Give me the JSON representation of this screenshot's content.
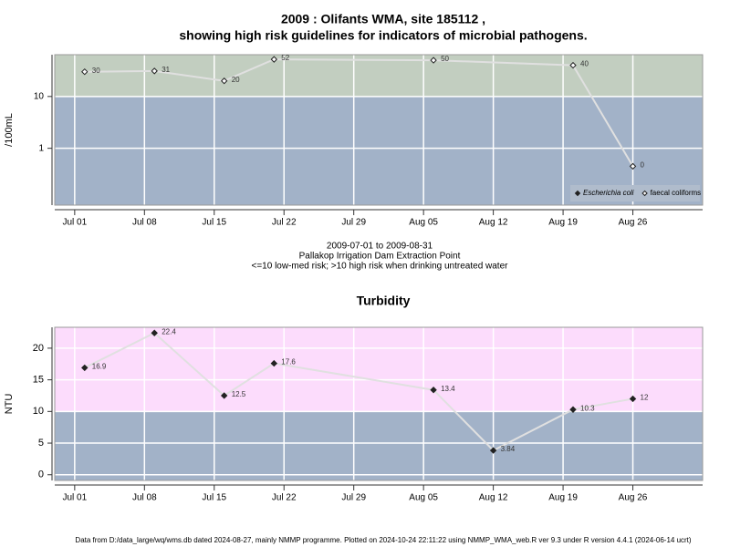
{
  "chart_data": [
    {
      "type": "line",
      "title": [
        "2009 : Olifants WMA, site 185112 ,",
        "showing high risk guidelines for indicators of microbial pathogens."
      ],
      "ylabel": "/100mL",
      "log_y": true,
      "threshold": 10,
      "colors": {
        "above": "#c2cec0",
        "below": "#a2b2c8",
        "line": "#e0e0e0"
      },
      "caption": [
        "2009-07-01 to 2009-08-31",
        "Pallakop Irrigation Dam Extraction Point",
        "<=10 low-med risk; >10 high risk when drinking untreated water"
      ],
      "x": [
        "Jul 02",
        "Jul 09",
        "Jul 16",
        "Jul 21",
        "Aug 06",
        "Aug 20",
        "Aug 26"
      ],
      "series": [
        {
          "name": "Escherichia coli",
          "color": "#222222",
          "values": [
            null,
            null,
            null,
            null,
            null,
            null,
            null
          ]
        },
        {
          "name": "faecal coliforms",
          "color": "#ffffff",
          "values": [
            30,
            31,
            20,
            52,
            50,
            40,
            0.45
          ],
          "value_labels": [
            "30",
            "31",
            "20",
            "52",
            "50",
            "40",
            "0"
          ]
        }
      ],
      "xlim": [
        "Jun 29",
        "Sep 02"
      ],
      "xticks": [
        "Jul 01",
        "Jul 08",
        "Jul 15",
        "Jul 22",
        "Jul 29",
        "Aug 05",
        "Aug 12",
        "Aug 19",
        "Aug 26"
      ],
      "ylim": [
        0.08,
        64
      ],
      "yticks": [
        1,
        10
      ],
      "grid": true,
      "legend": "bottom-right"
    },
    {
      "type": "line",
      "title": [
        "Turbidity"
      ],
      "ylabel": "NTU",
      "log_y": false,
      "threshold": 10,
      "colors": {
        "above": "#fcdcfc",
        "below": "#a2b2c8",
        "line": "#e0e0e0"
      },
      "x": [
        "Jul 02",
        "Jul 09",
        "Jul 16",
        "Jul 21",
        "Aug 06",
        "Aug 12",
        "Aug 20",
        "Aug 26"
      ],
      "series": [
        {
          "color": "#222222",
          "values": [
            16.9,
            22.4,
            12.5,
            17.6,
            13.4,
            3.84,
            10.3,
            12
          ]
        }
      ],
      "xlim": [
        "Jun 29",
        "Sep 02"
      ],
      "xticks": [
        "Jul 01",
        "Jul 08",
        "Jul 15",
        "Jul 22",
        "Jul 29",
        "Aug 05",
        "Aug 12",
        "Aug 19",
        "Aug 26"
      ],
      "ylim": [
        -0.9,
        23.3
      ],
      "yticks": [
        0,
        5,
        10,
        15,
        20
      ],
      "grid": true
    }
  ],
  "footer": "Data from D:/data_large/wq/wms.db dated 2024-08-27, mainly NMMP programme. Plotted on 2024-10-24 22:11:22 using NMMP_WMA_web.R ver 9.3 under R version 4.4.1 (2024-06-14 ucrt)"
}
